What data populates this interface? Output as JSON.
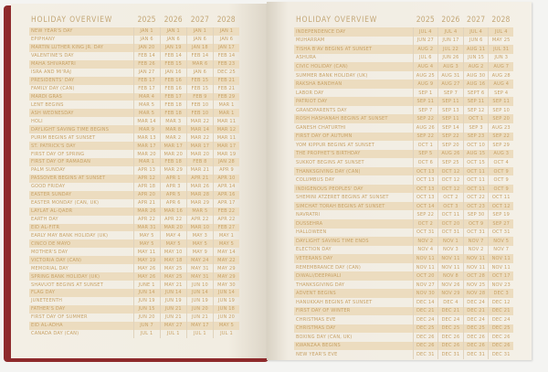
{
  "colors": {
    "text": "#c8a266",
    "row_shade": "#ecdcbf",
    "paper": "#f3efe5",
    "cover": "#8e2a2c"
  },
  "left": {
    "title": "HOLIDAY OVERVIEW",
    "years": [
      "2025",
      "2026",
      "2027",
      "2028"
    ],
    "rows": [
      [
        "New Year's Day",
        "JAN 1",
        "JAN 1",
        "JAN 1",
        "JAN 1"
      ],
      [
        "Epiphany",
        "JAN 6",
        "JAN 6",
        "JAN 6",
        "JAN 6"
      ],
      [
        "Martin Luther King Jr. Day",
        "JAN 20",
        "JAN 19",
        "JAN 18",
        "JAN 17"
      ],
      [
        "Valentine's Day",
        "FEB 14",
        "FEB 14",
        "FEB 14",
        "FEB 14"
      ],
      [
        "Maha Shivaratri",
        "FEB 26",
        "FEB 15",
        "MAR 6",
        "FEB 23"
      ],
      [
        "Isra and Mi'raj",
        "JAN 27",
        "JAN 16",
        "JAN 6",
        "DEC 25"
      ],
      [
        "Presidents' Day",
        "FEB 17",
        "FEB 16",
        "FEB 15",
        "FEB 21"
      ],
      [
        "Family Day (CAN)",
        "FEB 17",
        "FEB 16",
        "FEB 15",
        "FEB 21"
      ],
      [
        "Mardi Gras",
        "MAR 4",
        "FEB 17",
        "FEB 9",
        "FEB 29"
      ],
      [
        "Lent Begins",
        "MAR 5",
        "FEB 18",
        "FEB 10",
        "MAR 1"
      ],
      [
        "Ash Wednesday",
        "MAR 5",
        "FEB 18",
        "FEB 10",
        "MAR 1"
      ],
      [
        "Holi",
        "MAR 14",
        "MAR 3",
        "MAR 22",
        "MAR 11"
      ],
      [
        "Daylight Saving Time Begins",
        "MAR 9",
        "MAR 8",
        "MAR 14",
        "MAR 12"
      ],
      [
        "Purim Begins at Sunset",
        "MAR 13",
        "MAR 2",
        "MAR 22",
        "MAR 11"
      ],
      [
        "St. Patrick's Day",
        "MAR 17",
        "MAR 17",
        "MAR 17",
        "MAR 17"
      ],
      [
        "First Day of Spring",
        "MAR 20",
        "MAR 20",
        "MAR 20",
        "MAR 19"
      ],
      [
        "First Day of Ramadan",
        "MAR 1",
        "FEB 18",
        "FEB 8",
        "JAN 28"
      ],
      [
        "Palm Sunday",
        "APR 13",
        "MAR 29",
        "MAR 21",
        "APR 9"
      ],
      [
        "Passover Begins at Sunset",
        "APR 12",
        "APR 1",
        "APR 21",
        "APR 10"
      ],
      [
        "Good Friday",
        "APR 18",
        "APR 3",
        "MAR 26",
        "APR 14"
      ],
      [
        "Easter Sunday",
        "APR 20",
        "APR 5",
        "MAR 28",
        "APR 16"
      ],
      [
        "Easter Monday (CAN, UK)",
        "APR 21",
        "APR 6",
        "MAR 29",
        "APR 17"
      ],
      [
        "Laylat al-Qadr",
        "MAR 26",
        "MAR 16",
        "MAR 5",
        "FEB 22"
      ],
      [
        "Earth Day",
        "APR 22",
        "APR 22",
        "APR 22",
        "APR 22"
      ],
      [
        "Eid al-Fitr",
        "MAR 31",
        "MAR 20",
        "MAR 10",
        "FEB 27"
      ],
      [
        "Early May Bank Holiday (UK)",
        "MAY 5",
        "MAY 4",
        "MAY 3",
        "MAY 1"
      ],
      [
        "Cinco de Mayo",
        "MAY 5",
        "MAY 5",
        "MAY 5",
        "MAY 5"
      ],
      [
        "Mother's Day",
        "MAY 11",
        "MAY 10",
        "MAY 9",
        "MAY 14"
      ],
      [
        "Victoria Day (CAN)",
        "MAY 19",
        "MAY 18",
        "MAY 24",
        "MAY 22"
      ],
      [
        "Memorial Day",
        "MAY 26",
        "MAY 25",
        "MAY 31",
        "MAY 29"
      ],
      [
        "Spring Bank Holiday (UK)",
        "MAY 26",
        "MAY 25",
        "MAY 31",
        "MAY 29"
      ],
      [
        "Shavuot Begins at Sunset",
        "JUNE 1",
        "MAY 21",
        "JUN 10",
        "MAY 30"
      ],
      [
        "Flag Day",
        "JUN 14",
        "JUN 14",
        "JUN 14",
        "JUN 14"
      ],
      [
        "Juneteenth",
        "JUN 19",
        "JUN 19",
        "JUN 19",
        "JUN 19"
      ],
      [
        "Father's Day",
        "JUN 15",
        "JUN 21",
        "JUN 20",
        "JUN 18"
      ],
      [
        "First Day of Summer",
        "JUN 20",
        "JUN 21",
        "JUN 21",
        "JUN 20"
      ],
      [
        "Eid al-Adha",
        "JUN 7",
        "MAY 27",
        "MAY 17",
        "MAY 5"
      ],
      [
        "Canada Day (CAN)",
        "JUL 1",
        "JUL 1",
        "JUL 1",
        "JUL 1"
      ]
    ]
  },
  "right": {
    "title": "HOLIDAY OVERVIEW",
    "years": [
      "2025",
      "2026",
      "2027",
      "2028"
    ],
    "rows": [
      [
        "Independence Day",
        "JUL 4",
        "JUL 4",
        "JUL 4",
        "JUL 4"
      ],
      [
        "Muharram",
        "JUN 27",
        "JUN 17",
        "JUN 6",
        "MAY 25"
      ],
      [
        "Tisha B'Av Begins at Sunset",
        "AUG 2",
        "JUL 22",
        "AUG 11",
        "JUL 31"
      ],
      [
        "Ashura",
        "JUL 6",
        "JUN 26",
        "JUN 15",
        "JUN 3"
      ],
      [
        "Civic Holiday (CAN)",
        "AUG 4",
        "AUG 3",
        "AUG 2",
        "AUG 7"
      ],
      [
        "Summer Bank Holiday (UK)",
        "AUG 25",
        "AUG 31",
        "AUG 30",
        "AUG 28"
      ],
      [
        "Raksha Bandhan",
        "AUG 9",
        "AUG 27",
        "AUG 16",
        "AUG 4"
      ],
      [
        "Labor Day",
        "SEP 1",
        "SEP 7",
        "SEPT 6",
        "SEP 4"
      ],
      [
        "Patriot Day",
        "SEP 11",
        "SEP 11",
        "SEP 11",
        "SEP 11"
      ],
      [
        "Grandparents Day",
        "SEP 7",
        "SEP 13",
        "SEP 12",
        "SEP 10"
      ],
      [
        "Rosh Hashanah Begins at Sunset",
        "SEP 22",
        "SEP 11",
        "OCT 1",
        "SEP 20"
      ],
      [
        "Ganesh Chaturthi",
        "AUG 26",
        "SEP 14",
        "SEP 3",
        "AUG 23"
      ],
      [
        "First Day of Autumn",
        "SEP 22",
        "SEP 22",
        "SEP 23",
        "SEP 22"
      ],
      [
        "Yom Kippur Begins at Sunset",
        "OCT 1",
        "SEP 20",
        "OCT 10",
        "SEP 29"
      ],
      [
        "The Prophet's Birthday",
        "SEP 5",
        "AUG 26",
        "AUG 15",
        "AUG 3"
      ],
      [
        "Sukkot Begins at Sunset",
        "OCT 6",
        "SEP 25",
        "OCT 15",
        "OCT 4"
      ],
      [
        "Thanksgiving Day (CAN)",
        "OCT 13",
        "OCT 12",
        "OCT 11",
        "OCT 9"
      ],
      [
        "Columbus Day",
        "OCT 13",
        "OCT 12",
        "OCT 11",
        "OCT 9"
      ],
      [
        "Indigenous Peoples' Day",
        "OCT 13",
        "OCT 12",
        "OCT 11",
        "OCT 9"
      ],
      [
        "Shemini Atzeret Begins at Sunset",
        "OCT 13",
        "OCT 2",
        "OCT 22",
        "OCT 11"
      ],
      [
        "Simchat Torah Begins at Sunset",
        "OCT 14",
        "OCT 3",
        "OCT 23",
        "OCT 12"
      ],
      [
        "Navratri",
        "SEP 22",
        "OCT 11",
        "SEP 30",
        "SEP 19"
      ],
      [
        "Dussehra",
        "OCT 2",
        "OCT 20",
        "OCT 9",
        "SEP 27"
      ],
      [
        "Halloween",
        "OCT 31",
        "OCT 31",
        "OCT 31",
        "OCT 31"
      ],
      [
        "Daylight Saving Time Ends",
        "NOV 2",
        "NOV 1",
        "NOV 7",
        "NOV 5"
      ],
      [
        "Election Day",
        "NOV 4",
        "NOV 3",
        "NOV 2",
        "NOV 7"
      ],
      [
        "Veterans Day",
        "NOV 11",
        "NOV 11",
        "NOV 11",
        "NOV 11"
      ],
      [
        "Remembrance Day (CAN)",
        "NOV 11",
        "NOV 11",
        "NOV 11",
        "NOV 11"
      ],
      [
        "Diwali/Deepavali",
        "OCT 20",
        "NOV 8",
        "OCT 28",
        "OCT 17"
      ],
      [
        "Thanksgiving Day",
        "NOV 27",
        "NOV 26",
        "NOV 25",
        "NOV 23"
      ],
      [
        "Advent Begins",
        "NOV 30",
        "NOV 29",
        "NOV 28",
        "DEC 3"
      ],
      [
        "Hanukkah Begins at Sunset",
        "DEC 14",
        "DEC 4",
        "DEC 24",
        "DEC 12"
      ],
      [
        "First Day of Winter",
        "DEC 21",
        "DEC 21",
        "DEC 21",
        "DEC 21"
      ],
      [
        "Christmas Eve",
        "DEC 24",
        "DEC 24",
        "DEC 24",
        "DEC 24"
      ],
      [
        "Christmas Day",
        "DEC 25",
        "DEC 25",
        "DEC 25",
        "DEC 25"
      ],
      [
        "Boxing Day (CAN, UK)",
        "DEC 26",
        "DEC 26",
        "DEC 26",
        "DEC 26"
      ],
      [
        "Kwanzaa Begins",
        "DEC 26",
        "DEC 26",
        "DEC 26",
        "DEC 26"
      ],
      [
        "New Year's Eve",
        "DEC 31",
        "DEC 31",
        "DEC 31",
        "DEC 31"
      ]
    ]
  }
}
